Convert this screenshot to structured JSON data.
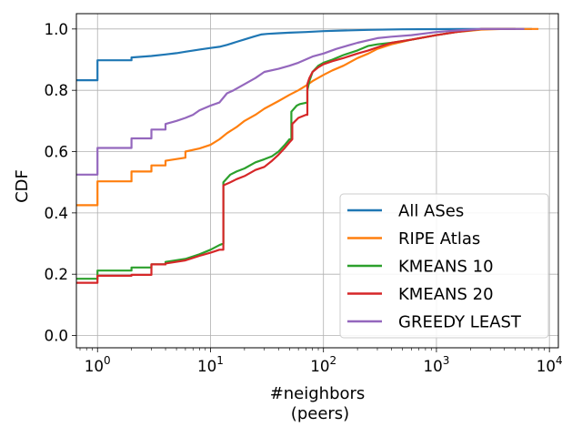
{
  "chart_data": {
    "type": "line",
    "title": "",
    "xlabel_line1": "#neighbors",
    "xlabel_line2": "(peers)",
    "ylabel": "CDF",
    "xscale": "log",
    "xlim": [
      0.65,
      12000
    ],
    "ylim": [
      -0.04,
      1.05
    ],
    "grid": true,
    "legend_position": "lower-right",
    "x_ticks": [
      {
        "value": 1,
        "base": "10",
        "exp": "0"
      },
      {
        "value": 10,
        "base": "10",
        "exp": "1"
      },
      {
        "value": 100,
        "base": "10",
        "exp": "2"
      },
      {
        "value": 1000,
        "base": "10",
        "exp": "3"
      },
      {
        "value": 10000,
        "base": "10",
        "exp": "4"
      }
    ],
    "y_ticks": [
      {
        "value": 0.0,
        "label": "0.0"
      },
      {
        "value": 0.2,
        "label": "0.2"
      },
      {
        "value": 0.4,
        "label": "0.4"
      },
      {
        "value": 0.6,
        "label": "0.6"
      },
      {
        "value": 0.8,
        "label": "0.8"
      },
      {
        "value": 1.0,
        "label": "1.0"
      }
    ],
    "series": [
      {
        "name": "All ASes",
        "color": "#1f77b4",
        "points": [
          [
            0.65,
            0.833
          ],
          [
            1,
            0.833
          ],
          [
            1,
            0.898
          ],
          [
            2,
            0.898
          ],
          [
            2,
            0.907
          ],
          [
            3,
            0.912
          ],
          [
            4,
            0.917
          ],
          [
            5,
            0.921
          ],
          [
            6,
            0.926
          ],
          [
            8,
            0.933
          ],
          [
            10,
            0.938
          ],
          [
            12,
            0.942
          ],
          [
            14,
            0.948
          ],
          [
            17,
            0.958
          ],
          [
            20,
            0.966
          ],
          [
            24,
            0.975
          ],
          [
            28,
            0.982
          ],
          [
            32,
            0.984
          ],
          [
            40,
            0.986
          ],
          [
            50,
            0.988
          ],
          [
            70,
            0.99
          ],
          [
            100,
            0.993
          ],
          [
            150,
            0.995
          ],
          [
            250,
            0.997
          ],
          [
            500,
            0.999
          ],
          [
            1000,
            0.9995
          ],
          [
            3000,
            1.0
          ],
          [
            7000,
            1.0
          ]
        ]
      },
      {
        "name": "RIPE Atlas",
        "color": "#ff7f0e",
        "points": [
          [
            0.65,
            0.425
          ],
          [
            1,
            0.425
          ],
          [
            1,
            0.503
          ],
          [
            2,
            0.503
          ],
          [
            2,
            0.535
          ],
          [
            3,
            0.535
          ],
          [
            3,
            0.555
          ],
          [
            4,
            0.555
          ],
          [
            4,
            0.57
          ],
          [
            6,
            0.58
          ],
          [
            6,
            0.6
          ],
          [
            8,
            0.61
          ],
          [
            10,
            0.622
          ],
          [
            12,
            0.64
          ],
          [
            14,
            0.66
          ],
          [
            17,
            0.68
          ],
          [
            20,
            0.7
          ],
          [
            25,
            0.72
          ],
          [
            30,
            0.74
          ],
          [
            40,
            0.765
          ],
          [
            50,
            0.785
          ],
          [
            60,
            0.8
          ],
          [
            70,
            0.815
          ],
          [
            80,
            0.83
          ],
          [
            100,
            0.85
          ],
          [
            120,
            0.865
          ],
          [
            150,
            0.88
          ],
          [
            200,
            0.905
          ],
          [
            250,
            0.92
          ],
          [
            300,
            0.935
          ],
          [
            400,
            0.95
          ],
          [
            600,
            0.965
          ],
          [
            1000,
            0.98
          ],
          [
            1500,
            0.99
          ],
          [
            2500,
            0.998
          ],
          [
            4000,
            1.0
          ],
          [
            8000,
            1.0
          ]
        ]
      },
      {
        "name": "KMEANS 10",
        "color": "#2ca02c",
        "points": [
          [
            0.65,
            0.185
          ],
          [
            1,
            0.185
          ],
          [
            1,
            0.212
          ],
          [
            2,
            0.212
          ],
          [
            2,
            0.222
          ],
          [
            3,
            0.222
          ],
          [
            3,
            0.232
          ],
          [
            4,
            0.232
          ],
          [
            4,
            0.24
          ],
          [
            6,
            0.25
          ],
          [
            8,
            0.265
          ],
          [
            10,
            0.28
          ],
          [
            12,
            0.295
          ],
          [
            13,
            0.3
          ],
          [
            13,
            0.5
          ],
          [
            15,
            0.525
          ],
          [
            17,
            0.535
          ],
          [
            20,
            0.545
          ],
          [
            25,
            0.565
          ],
          [
            30,
            0.575
          ],
          [
            35,
            0.585
          ],
          [
            40,
            0.6
          ],
          [
            45,
            0.62
          ],
          [
            50,
            0.64
          ],
          [
            52,
            0.64
          ],
          [
            52,
            0.73
          ],
          [
            58,
            0.75
          ],
          [
            62,
            0.755
          ],
          [
            72,
            0.76
          ],
          [
            72,
            0.8
          ],
          [
            75,
            0.83
          ],
          [
            80,
            0.86
          ],
          [
            90,
            0.88
          ],
          [
            100,
            0.89
          ],
          [
            120,
            0.9
          ],
          [
            150,
            0.915
          ],
          [
            200,
            0.93
          ],
          [
            250,
            0.945
          ],
          [
            300,
            0.95
          ],
          [
            400,
            0.955
          ],
          [
            600,
            0.965
          ],
          [
            1000,
            0.98
          ],
          [
            1500,
            0.99
          ],
          [
            2500,
            1.0
          ],
          [
            5000,
            1.0
          ]
        ]
      },
      {
        "name": "KMEANS 20",
        "color": "#d62728",
        "points": [
          [
            0.65,
            0.172
          ],
          [
            1,
            0.172
          ],
          [
            1,
            0.195
          ],
          [
            2,
            0.195
          ],
          [
            2,
            0.198
          ],
          [
            3,
            0.198
          ],
          [
            3,
            0.232
          ],
          [
            4,
            0.232
          ],
          [
            4,
            0.235
          ],
          [
            6,
            0.245
          ],
          [
            8,
            0.26
          ],
          [
            10,
            0.27
          ],
          [
            12,
            0.28
          ],
          [
            13,
            0.28
          ],
          [
            13,
            0.49
          ],
          [
            15,
            0.5
          ],
          [
            17,
            0.51
          ],
          [
            20,
            0.52
          ],
          [
            25,
            0.54
          ],
          [
            30,
            0.55
          ],
          [
            35,
            0.57
          ],
          [
            40,
            0.59
          ],
          [
            45,
            0.61
          ],
          [
            50,
            0.63
          ],
          [
            53,
            0.64
          ],
          [
            53,
            0.69
          ],
          [
            60,
            0.71
          ],
          [
            70,
            0.72
          ],
          [
            72,
            0.72
          ],
          [
            72,
            0.82
          ],
          [
            75,
            0.84
          ],
          [
            80,
            0.86
          ],
          [
            90,
            0.875
          ],
          [
            100,
            0.885
          ],
          [
            120,
            0.895
          ],
          [
            150,
            0.905
          ],
          [
            200,
            0.92
          ],
          [
            250,
            0.93
          ],
          [
            300,
            0.94
          ],
          [
            400,
            0.955
          ],
          [
            600,
            0.965
          ],
          [
            1000,
            0.98
          ],
          [
            1500,
            0.99
          ],
          [
            2500,
            1.0
          ],
          [
            5000,
            1.0
          ]
        ]
      },
      {
        "name": "GREEDY LEAST",
        "color": "#9467bd",
        "points": [
          [
            0.65,
            0.525
          ],
          [
            1,
            0.525
          ],
          [
            1,
            0.612
          ],
          [
            2,
            0.612
          ],
          [
            2,
            0.643
          ],
          [
            3,
            0.643
          ],
          [
            3,
            0.672
          ],
          [
            4,
            0.672
          ],
          [
            4,
            0.69
          ],
          [
            5,
            0.7
          ],
          [
            6,
            0.71
          ],
          [
            7,
            0.72
          ],
          [
            8,
            0.735
          ],
          [
            10,
            0.75
          ],
          [
            12,
            0.76
          ],
          [
            14,
            0.79
          ],
          [
            16,
            0.8
          ],
          [
            20,
            0.82
          ],
          [
            25,
            0.84
          ],
          [
            30,
            0.86
          ],
          [
            40,
            0.87
          ],
          [
            50,
            0.88
          ],
          [
            60,
            0.89
          ],
          [
            80,
            0.91
          ],
          [
            100,
            0.92
          ],
          [
            130,
            0.935
          ],
          [
            160,
            0.945
          ],
          [
            200,
            0.955
          ],
          [
            300,
            0.97
          ],
          [
            400,
            0.975
          ],
          [
            600,
            0.98
          ],
          [
            1000,
            0.99
          ],
          [
            1500,
            0.995
          ],
          [
            2500,
            1.0
          ],
          [
            6000,
            1.0
          ]
        ]
      }
    ]
  }
}
